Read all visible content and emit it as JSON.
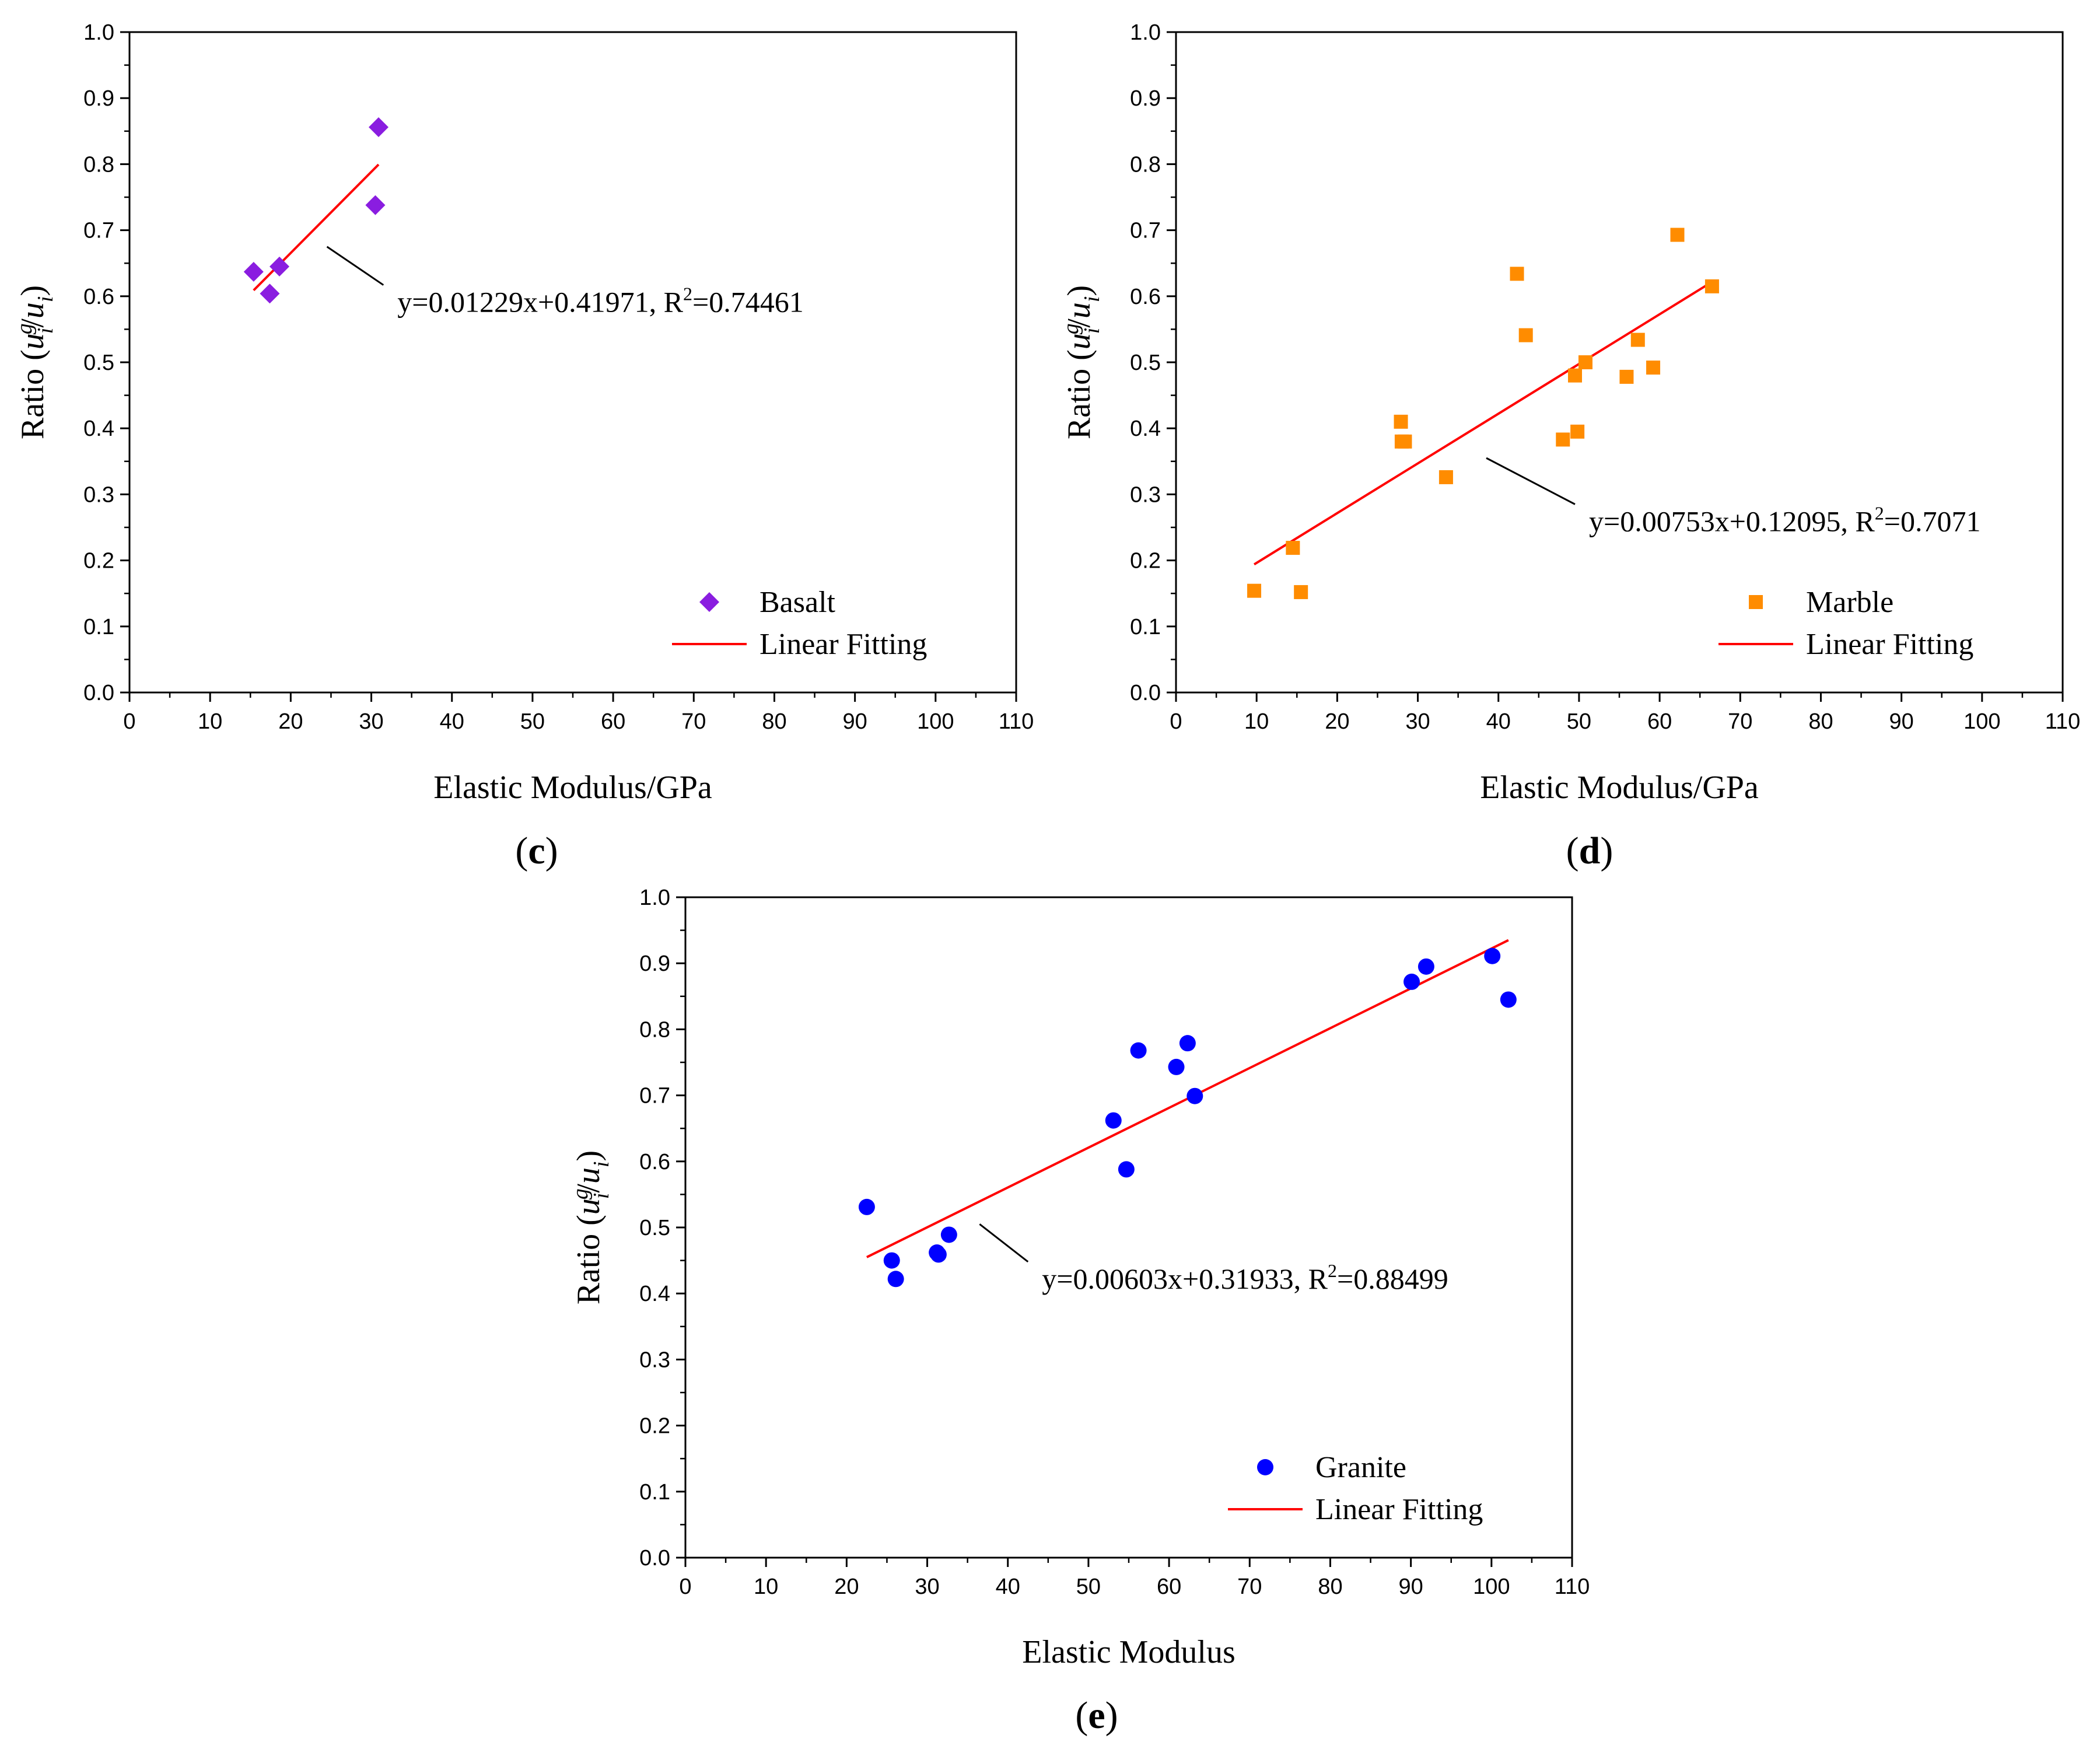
{
  "chart_data": [
    {
      "type": "scatter",
      "panel_label": "c",
      "xlabel": "Elastic Modulus/GPa",
      "ylabel": {
        "prefix": "Ratio (",
        "u1": "u",
        "sup": "g",
        "sub": "i",
        "slash": "/",
        "u2": "u",
        "sub2": "i",
        "suffix": ")"
      },
      "xlim": [
        0,
        110
      ],
      "ylim": [
        0,
        1.0
      ],
      "xticks": [
        0,
        10,
        20,
        30,
        40,
        50,
        60,
        70,
        80,
        90,
        100,
        110
      ],
      "yticks": [
        0.0,
        0.1,
        0.2,
        0.3,
        0.4,
        0.5,
        0.6,
        0.7,
        0.8,
        0.9,
        1.0
      ],
      "marker": "diamond",
      "color": "#8a1de0",
      "fit_color": "#ff0000",
      "series": [
        {
          "name": "Basalt",
          "x": [
            15.4,
            17.4,
            18.6,
            30.5,
            30.9
          ],
          "y": [
            0.637,
            0.604,
            0.645,
            0.738,
            0.856
          ]
        }
      ],
      "fit": {
        "name": "Linear Fitting",
        "slope": 0.01229,
        "intercept": 0.41971,
        "x_range": [
          15.4,
          30.9
        ]
      },
      "annotation": {
        "pre": "y=0.01229x+0.41971, R",
        "sup": "2",
        "post": "=0.74461",
        "pointer_from": [
          24.5,
          0.675
        ],
        "pointer_to": [
          31.5,
          0.617
        ]
      },
      "legend_position": "bottom-right"
    },
    {
      "type": "scatter",
      "panel_label": "d",
      "xlabel": "Elastic Modulus/GPa",
      "ylabel": {
        "prefix": "Ratio (",
        "u1": "u",
        "sup": "g",
        "sub": "i",
        "slash": "/",
        "u2": "u",
        "sub2": "i",
        "suffix": ")"
      },
      "xlim": [
        0,
        110
      ],
      "ylim": [
        0,
        1.0
      ],
      "xticks": [
        0,
        10,
        20,
        30,
        40,
        50,
        60,
        70,
        80,
        90,
        100,
        110
      ],
      "yticks": [
        0.0,
        0.1,
        0.2,
        0.3,
        0.4,
        0.5,
        0.6,
        0.7,
        0.8,
        0.9,
        1.0
      ],
      "marker": "square",
      "color": "#ff8c00",
      "fit_color": "#ff0000",
      "series": [
        {
          "name": "Marble",
          "x": [
            9.7,
            14.5,
            15.5,
            27.9,
            28.0,
            28.4,
            33.5,
            42.3,
            43.4,
            48.0,
            49.5,
            49.8,
            50.8,
            55.9,
            57.3,
            59.2,
            62.2,
            66.5
          ],
          "y": [
            0.154,
            0.219,
            0.152,
            0.41,
            0.38,
            0.38,
            0.326,
            0.634,
            0.541,
            0.383,
            0.48,
            0.395,
            0.5,
            0.478,
            0.534,
            0.492,
            0.693,
            0.615
          ]
        }
      ],
      "fit": {
        "name": "Linear Fitting",
        "slope": 0.00753,
        "intercept": 0.12095,
        "x_range": [
          9.7,
          66.5
        ]
      },
      "annotation": {
        "pre": "y=0.00753x+0.12095, R",
        "sup": "2",
        "post": "=0.7071",
        "pointer_from": [
          38.5,
          0.355
        ],
        "pointer_to": [
          49.5,
          0.285
        ]
      },
      "legend_position": "bottom-right"
    },
    {
      "type": "scatter",
      "panel_label": "e",
      "xlabel": "Elastic Modulus",
      "ylabel": {
        "prefix": "Ratio (",
        "u1": "u",
        "sup": "g",
        "sub": "i",
        "slash": "/",
        "u2": "u",
        "sub2": "i",
        "suffix": ")"
      },
      "xlim": [
        0,
        110
      ],
      "ylim": [
        0,
        1.0
      ],
      "xticks": [
        0,
        10,
        20,
        30,
        40,
        50,
        60,
        70,
        80,
        90,
        100,
        110
      ],
      "yticks": [
        0.0,
        0.1,
        0.2,
        0.3,
        0.4,
        0.5,
        0.6,
        0.7,
        0.8,
        0.9,
        1.0
      ],
      "marker": "circle",
      "color": "#0000ff",
      "fit_color": "#ff0000",
      "series": [
        {
          "name": "Granite",
          "x": [
            22.5,
            25.6,
            26.1,
            31.2,
            31.4,
            32.7,
            53.1,
            54.7,
            56.2,
            60.9,
            62.3,
            63.2,
            90.1,
            91.9,
            100.1,
            102.1
          ],
          "y": [
            0.531,
            0.45,
            0.422,
            0.462,
            0.459,
            0.489,
            0.662,
            0.588,
            0.768,
            0.743,
            0.779,
            0.699,
            0.872,
            0.895,
            0.911,
            0.845
          ]
        }
      ],
      "fit": {
        "name": "Linear Fitting",
        "slope": 0.00603,
        "intercept": 0.31933,
        "x_range": [
          22.5,
          102.1
        ]
      },
      "annotation": {
        "pre": "y=0.00603x+0.31933, R",
        "sup": "2",
        "post": "=0.88499",
        "pointer_from": [
          36.5,
          0.505
        ],
        "pointer_to": [
          42.5,
          0.448
        ]
      },
      "legend_position": "bottom-right"
    }
  ]
}
